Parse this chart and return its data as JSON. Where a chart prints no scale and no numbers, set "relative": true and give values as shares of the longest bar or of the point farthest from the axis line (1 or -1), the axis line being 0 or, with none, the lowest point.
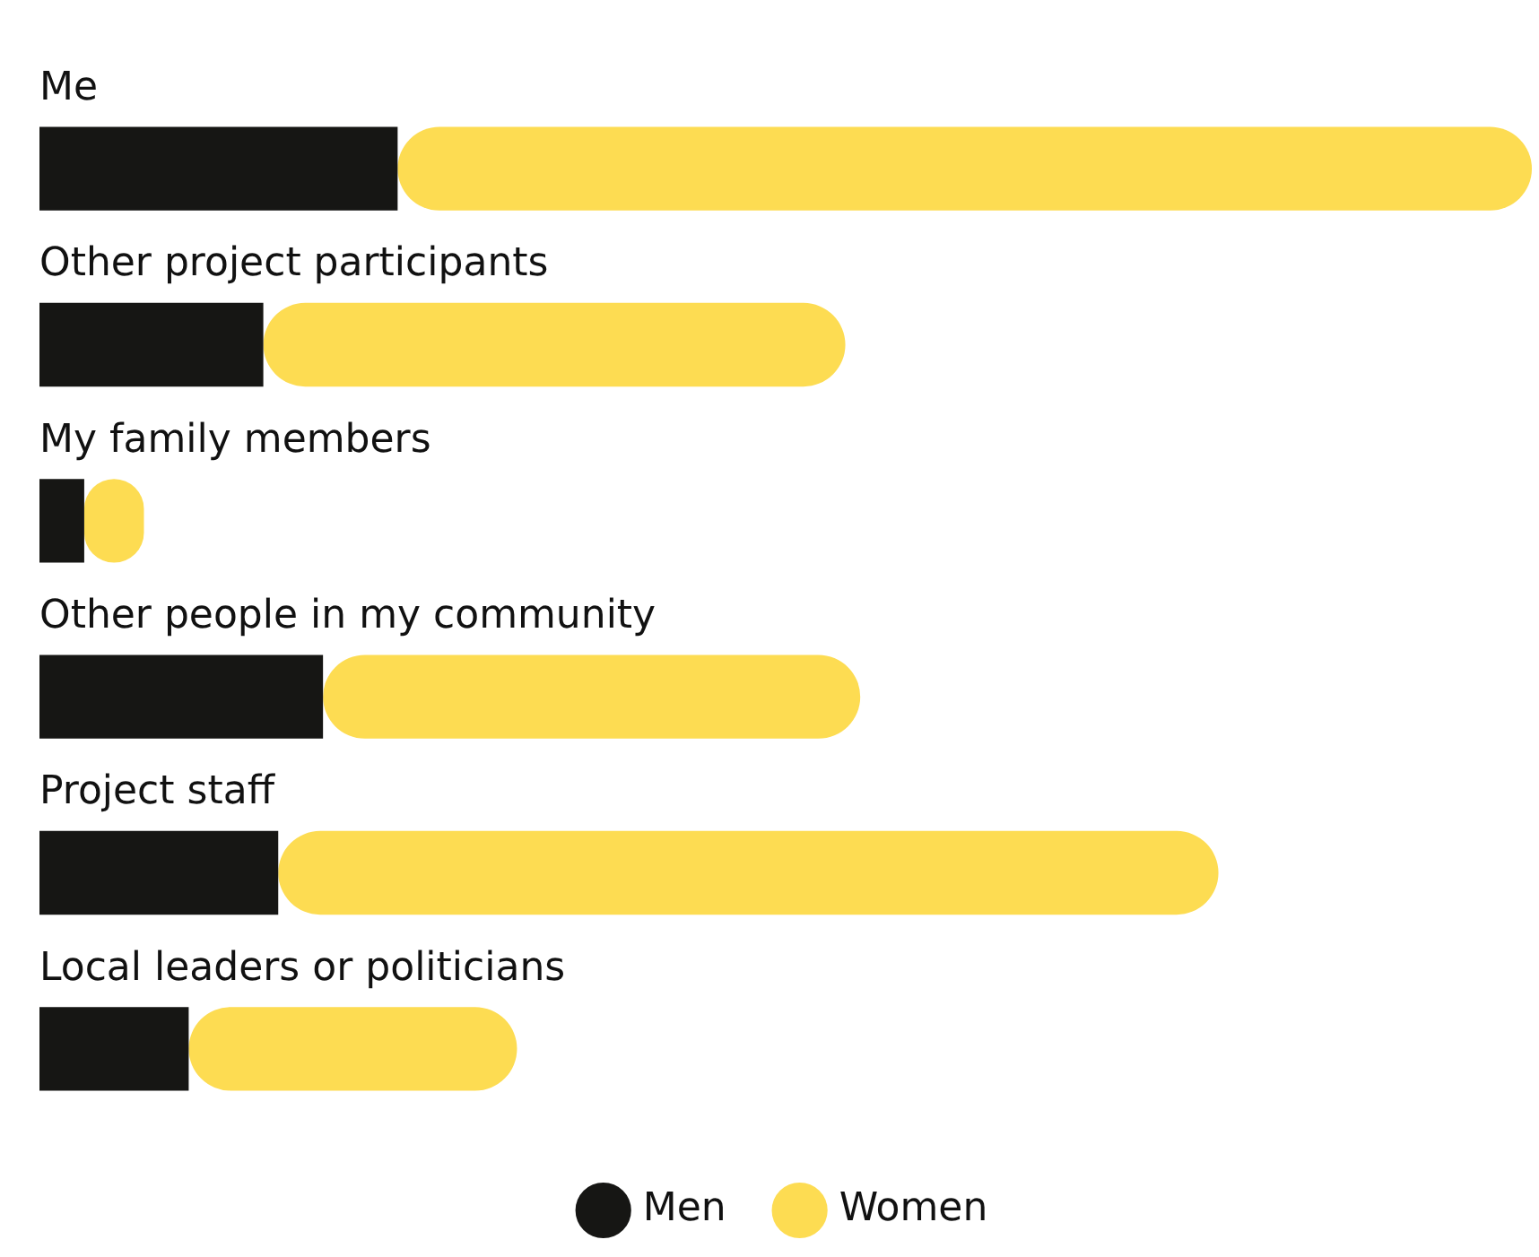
{
  "chart_data": {
    "type": "bar",
    "orientation": "horizontal",
    "stacked": true,
    "relative": true,
    "legend": "bottom",
    "categories": [
      "Me",
      "Other project participants",
      "My family members",
      "Other people in my community",
      "Project staff",
      "Local leaders or politicians"
    ],
    "series": [
      {
        "name": "Men",
        "color": "#161614",
        "values": [
          0.24,
          0.15,
          0.03,
          0.19,
          0.16,
          0.1
        ]
      },
      {
        "name": "Women",
        "color": "#fddc52",
        "values": [
          0.76,
          0.39,
          0.04,
          0.36,
          0.63,
          0.22
        ]
      }
    ]
  }
}
